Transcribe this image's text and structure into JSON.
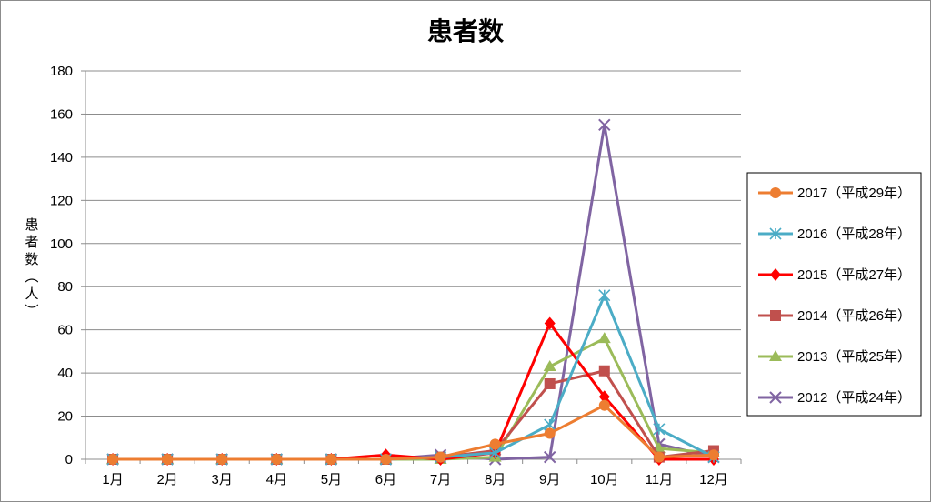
{
  "chart_data": {
    "type": "line",
    "title": "患者数",
    "ylabel": "患者数（人）",
    "xlabel": "",
    "categories": [
      "1月",
      "2月",
      "3月",
      "4月",
      "5月",
      "6月",
      "7月",
      "8月",
      "9月",
      "10月",
      "11月",
      "12月"
    ],
    "ylim": [
      0,
      180
    ],
    "yticks": [
      0,
      20,
      40,
      60,
      80,
      100,
      120,
      140,
      160,
      180
    ],
    "grid": true,
    "legend_position": "right",
    "series": [
      {
        "name": "2017（平成29年）",
        "color": "#ED7D31",
        "marker": "circle",
        "values": [
          0,
          0,
          0,
          0,
          0,
          0,
          1,
          7,
          12,
          25,
          1,
          2
        ]
      },
      {
        "name": "2016（平成28年）",
        "color": "#4BACC6",
        "marker": "star",
        "values": [
          0,
          0,
          0,
          0,
          0,
          0,
          1,
          3,
          16,
          76,
          14,
          1
        ]
      },
      {
        "name": "2015（平成27年）",
        "color": "#FF0000",
        "marker": "diamond",
        "values": [
          0,
          0,
          0,
          0,
          0,
          2,
          0,
          3,
          63,
          29,
          0,
          0
        ]
      },
      {
        "name": "2014（平成26年）",
        "color": "#C0504D",
        "marker": "square",
        "values": [
          0,
          0,
          0,
          0,
          0,
          0,
          1,
          4,
          35,
          41,
          1,
          4
        ]
      },
      {
        "name": "2013（平成25年）",
        "color": "#9BBB59",
        "marker": "triangle",
        "values": [
          0,
          0,
          0,
          0,
          0,
          0,
          0,
          1,
          43,
          56,
          5,
          3
        ]
      },
      {
        "name": "2012（平成24年）",
        "color": "#8064A2",
        "marker": "x",
        "values": [
          0,
          0,
          0,
          0,
          0,
          0,
          2,
          0,
          1,
          155,
          7,
          1
        ]
      }
    ]
  }
}
